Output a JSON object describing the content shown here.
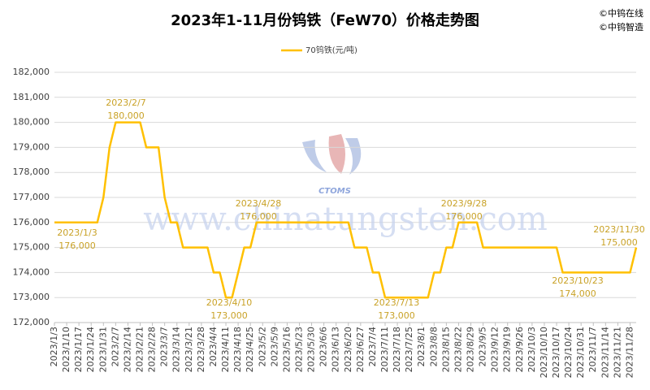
{
  "chart_data": {
    "type": "line",
    "title": "2023年1-11月份钨铁（FeW70）价格走势图",
    "credits": [
      "©中钨在线",
      "©中钨智造"
    ],
    "watermark": "www.chinatungsten.com",
    "logo_text": "CTOMS",
    "categories": [
      "2023/1/3",
      null,
      "2023/1/10",
      null,
      "2023/1/17",
      null,
      "2023/1/24",
      null,
      "2023/1/31",
      null,
      "2023/2/7",
      null,
      "2023/2/14",
      null,
      "2023/2/21",
      null,
      "2023/2/28",
      null,
      "2023/3/7",
      null,
      "2023/3/14",
      null,
      "2023/3/21",
      null,
      "2023/3/28",
      null,
      "2023/4/4",
      null,
      "2023/4/11",
      null,
      "2023/4/18",
      null,
      "2023/4/25",
      null,
      "2023/5/2",
      null,
      "2023/5/9",
      null,
      "2023/5/16",
      null,
      "2023/5/23",
      null,
      "2023/5/30",
      null,
      "2023/6/6",
      null,
      "2023/6/13",
      null,
      "2023/6/20",
      null,
      "2023/6/27",
      null,
      "2023/7/4",
      null,
      "2023/7/11",
      null,
      "2023/7/18",
      null,
      "2023/7/25",
      null,
      "2023/8/1",
      null,
      "2023/8/8",
      null,
      "2023/8/15",
      null,
      "2023/8/22",
      null,
      "2023/8/29",
      null,
      "2023/9/5",
      null,
      "2023/9/12",
      null,
      "2023/9/19",
      null,
      "2023/9/26",
      null,
      "2023/10/3",
      null,
      "2023/10/10",
      null,
      "2023/10/17",
      null,
      "2023/10/24",
      null,
      "2023/10/31",
      null,
      "2023/11/7",
      null,
      "2023/11/14",
      null,
      "2023/11/21",
      null,
      "2023/11/28",
      null
    ],
    "series": [
      {
        "name": "70钨铁(元/吨)",
        "color": "#ffc000",
        "values": [
          176000,
          176000,
          176000,
          176000,
          176000,
          176000,
          176000,
          176000,
          177000,
          179000,
          180000,
          180000,
          180000,
          180000,
          180000,
          179000,
          179000,
          179000,
          177000,
          176000,
          176000,
          175000,
          175000,
          175000,
          175000,
          175000,
          174000,
          174000,
          173000,
          173000,
          174000,
          175000,
          175000,
          176000,
          176000,
          176000,
          176000,
          176000,
          176000,
          176000,
          176000,
          176000,
          176000,
          176000,
          176000,
          176000,
          176000,
          176000,
          176000,
          175000,
          175000,
          175000,
          174000,
          174000,
          173000,
          173000,
          173000,
          173000,
          173000,
          173000,
          173000,
          173000,
          174000,
          174000,
          175000,
          175000,
          176000,
          176000,
          176000,
          176000,
          175000,
          175000,
          175000,
          175000,
          175000,
          175000,
          175000,
          175000,
          175000,
          175000,
          175000,
          175000,
          175000,
          174000,
          174000,
          174000,
          174000,
          174000,
          174000,
          174000,
          174000,
          174000,
          174000,
          174000,
          174000,
          175000
        ]
      }
    ],
    "annotations": [
      {
        "date": "2023/1/3",
        "label": "176,000"
      },
      {
        "date": "2023/2/7",
        "label": "180,000"
      },
      {
        "date": "2023/4/10",
        "label": "173,000"
      },
      {
        "date": "2023/4/28",
        "label": "176,000"
      },
      {
        "date": "2023/7/13",
        "label": "173,000"
      },
      {
        "date": "2023/9/28",
        "label": "176,000"
      },
      {
        "date": "2023/10/23",
        "label": "174,000"
      },
      {
        "date": "2023/11/30",
        "label": "175,000"
      }
    ],
    "ylim": [
      172000,
      182000
    ],
    "yticks": [
      {
        "value": 172000,
        "label": "172,000"
      },
      {
        "value": 173000,
        "label": "173,000"
      },
      {
        "value": 174000,
        "label": "174,000"
      },
      {
        "value": 175000,
        "label": "175,000"
      },
      {
        "value": 176000,
        "label": "176,000"
      },
      {
        "value": 177000,
        "label": "177,000"
      },
      {
        "value": 178000,
        "label": "178,000"
      },
      {
        "value": 179000,
        "label": "179,000"
      },
      {
        "value": 180000,
        "label": "180,000"
      },
      {
        "value": 181000,
        "label": "181,000"
      },
      {
        "value": 182000,
        "label": "182,000"
      }
    ],
    "grid": true,
    "legend": "top"
  }
}
